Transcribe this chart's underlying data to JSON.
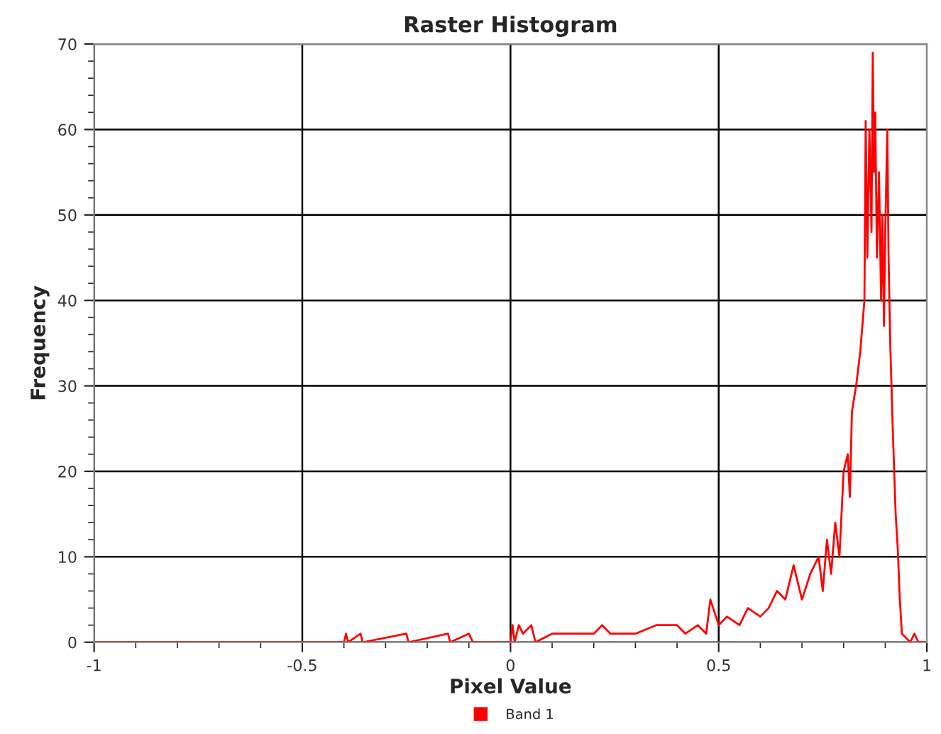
{
  "chart_data": {
    "type": "line",
    "title": "Raster Histogram",
    "xlabel": "Pixel Value",
    "ylabel": "Frequency",
    "x": [
      -1,
      -0.4,
      -0.395,
      -0.39,
      -0.36,
      -0.355,
      -0.25,
      -0.245,
      -0.15,
      -0.145,
      -0.1,
      -0.09,
      0,
      0.005,
      0.01,
      0.02,
      0.03,
      0.05,
      0.06,
      0.1,
      0.2,
      0.22,
      0.24,
      0.3,
      0.35,
      0.4,
      0.42,
      0.45,
      0.47,
      0.48,
      0.5,
      0.52,
      0.55,
      0.57,
      0.6,
      0.62,
      0.64,
      0.66,
      0.68,
      0.7,
      0.72,
      0.74,
      0.75,
      0.76,
      0.77,
      0.78,
      0.79,
      0.8,
      0.81,
      0.815,
      0.82,
      0.83,
      0.84,
      0.85,
      0.853,
      0.857,
      0.862,
      0.867,
      0.87,
      0.873,
      0.876,
      0.88,
      0.885,
      0.89,
      0.893,
      0.897,
      0.9,
      0.905,
      0.908,
      0.912,
      0.918,
      0.925,
      0.93,
      0.935,
      0.94,
      0.96,
      0.97,
      0.98,
      1
    ],
    "series": [
      {
        "name": "Band 1",
        "color": "#ff0000",
        "values": [
          0,
          0,
          1,
          0,
          1,
          0,
          1,
          0,
          1,
          0,
          1,
          0,
          0,
          2,
          0,
          2,
          1,
          2,
          0,
          1,
          1,
          2,
          1,
          1,
          2,
          2,
          1,
          2,
          1,
          5,
          2,
          3,
          2,
          4,
          3,
          4,
          6,
          5,
          9,
          5,
          8,
          10,
          6,
          12,
          8,
          14,
          10,
          20,
          22,
          17,
          27,
          30,
          34,
          40,
          61,
          45,
          60,
          48,
          69,
          55,
          62,
          45,
          55,
          40,
          50,
          37,
          48,
          60,
          45,
          35,
          25,
          15,
          11,
          5,
          1,
          0,
          1,
          0,
          0
        ]
      }
    ],
    "xlim": [
      -1,
      1
    ],
    "xticks": [
      -1,
      -0.5,
      0,
      0.5,
      1
    ],
    "ylim": [
      0,
      70
    ],
    "yticks": [
      0,
      10,
      20,
      30,
      40,
      50,
      60,
      70
    ],
    "grid": true,
    "legend": "bottom",
    "marker": "none",
    "line_style": "solid"
  }
}
